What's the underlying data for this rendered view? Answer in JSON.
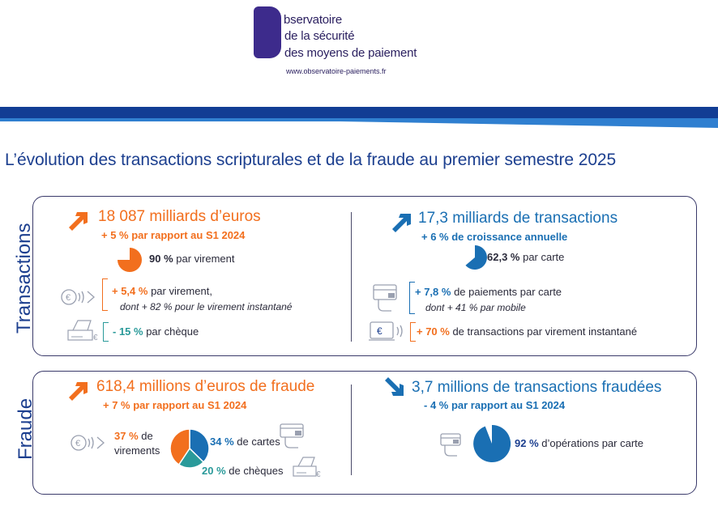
{
  "header": {
    "logo_line1": "bservatoire",
    "logo_line2": "de la sécurité",
    "logo_line3": "des moyens de paiement",
    "logo_url": "www.observatoire-paiements.fr"
  },
  "title": "L’évolution des transactions scripturales et de la fraude au premier semestre 2025",
  "transactions": {
    "side_label": "Transactions",
    "left": {
      "headline": "18 087 milliards d’euros",
      "sub": "+ 5 % par rapport au S1 2024",
      "share_value": "90 %",
      "share_text": " par virement",
      "transfer_value": "+ 5,4 %",
      "transfer_text": " par virement,",
      "transfer_note": "dont + 82 % pour le virement instantané",
      "cheque_value": "- 15 %",
      "cheque_text": " par chèque"
    },
    "right": {
      "headline": "17,3 milliards de transactions",
      "sub": "+ 6 % de croissance annuelle",
      "share_value": "62,3 %",
      "share_text": " par carte",
      "card_value": "+ 7,8 %",
      "card_text": " de paiements par carte",
      "card_note": "dont + 41 % par mobile",
      "instant_value": "+ 70 %",
      "instant_text": " de transactions par virement instantané"
    }
  },
  "fraud": {
    "side_label": "Fraude",
    "left": {
      "headline": "618,4 millions d’euros de fraude",
      "sub": "+ 7 % par rapport au S1 2024",
      "transfers_value": "37 %",
      "transfers_text": " de",
      "transfers_text2": "virements",
      "cards_value": "34 %",
      "cards_text": " de cartes",
      "cheques_value": "20 %",
      "cheques_text": " de chèques"
    },
    "right": {
      "headline": "3,7 millions de transactions fraudées",
      "sub": "- 4 % par rapport au S1 2024",
      "card_value": "92 %",
      "card_text": " d’opérations par carte"
    }
  },
  "shares": {
    "transactions_virement": 0.9,
    "transactions_carte": 0.623,
    "fraud_virements": 0.37,
    "fraud_cartes": 0.34,
    "fraud_cheques": 0.2,
    "fraud_operations_carte": 0.92
  },
  "colors": {
    "orange": "#f26f1e",
    "blue": "#1a6fb3",
    "teal": "#2a9a9a",
    "navy": "#1c3f8f",
    "logo_purple": "#3d2b8c"
  }
}
